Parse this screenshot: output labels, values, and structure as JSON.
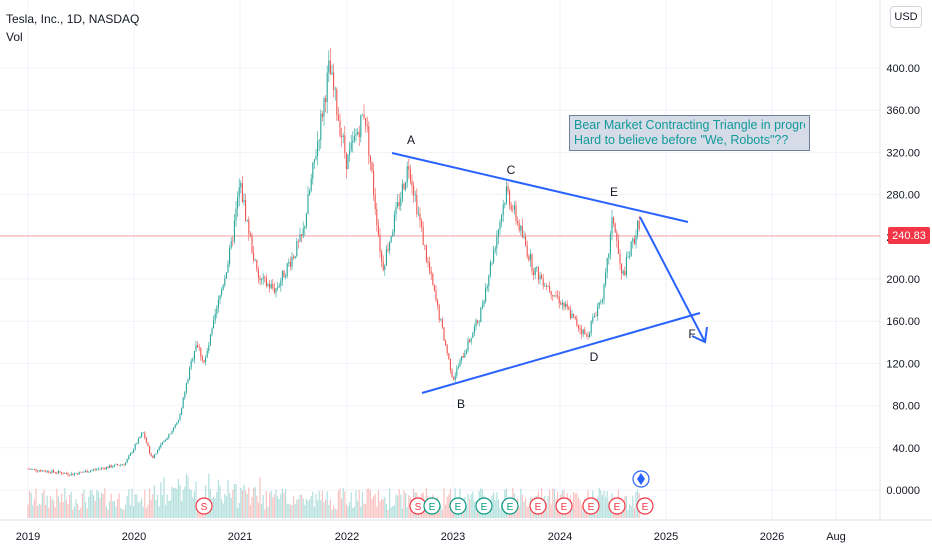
{
  "header": {
    "symbol": "Tesla, Inc., 1D, NASDAQ",
    "indicator": "Vol",
    "currency_button": "USD"
  },
  "colors": {
    "up": "#26a69a",
    "down": "#ef5350",
    "pattern_line": "#2962ff",
    "last_price_line": "#f7a5a9",
    "note_text": "#129a9a",
    "note_bg": "#d5dce8"
  },
  "icons": [
    "diamond-marker-icon",
    "earnings-badge-icon",
    "split-badge-icon"
  ],
  "chart_data": {
    "type": "candlestick",
    "x_axis": {
      "tick_labels": [
        "2019",
        "2020",
        "2021",
        "2022",
        "2023",
        "2024",
        "2025",
        "2026",
        "Aug"
      ]
    },
    "y_axis": {
      "tick_labels": [
        "400.00",
        "360.00",
        "320.00",
        "280.00",
        "240.00",
        "200.00",
        "160.00",
        "120.00",
        "80.00",
        "40.00",
        "0.0000"
      ],
      "range": [
        0,
        420
      ]
    },
    "last_price": {
      "label": "240.83",
      "value": 240.83
    },
    "price_path": [
      [
        "2019-01",
        20
      ],
      [
        "2019-06",
        15
      ],
      [
        "2019-12",
        25
      ],
      [
        "2020-02",
        55
      ],
      [
        "2020-03",
        30
      ],
      [
        "2020-06",
        65
      ],
      [
        "2020-08",
        140
      ],
      [
        "2020-09",
        120
      ],
      [
        "2020-12",
        230
      ],
      [
        "2021-01",
        290
      ],
      [
        "2021-03",
        200
      ],
      [
        "2021-05",
        190
      ],
      [
        "2021-08",
        240
      ],
      [
        "2021-11",
        400
      ],
      [
        "2022-01",
        310
      ],
      [
        "2022-03",
        360
      ],
      [
        "2022-05",
        210
      ],
      [
        "2022-08",
        310
      ],
      [
        "2022-10",
        220
      ],
      [
        "2023-01",
        105
      ],
      [
        "2023-04",
        165
      ],
      [
        "2023-07",
        285
      ],
      [
        "2023-10",
        210
      ],
      [
        "2024-01",
        180
      ],
      [
        "2024-04",
        145
      ],
      [
        "2024-06",
        190
      ],
      [
        "2024-07",
        260
      ],
      [
        "2024-08",
        200
      ],
      [
        "2024-10",
        255
      ]
    ],
    "annotations": {
      "wave_labels": [
        "A",
        "B",
        "C",
        "D",
        "E",
        "F"
      ],
      "note_lines": [
        "Bear Market Contracting Triangle in progress!!!",
        "Hard to believe before \"We, Robots\"??"
      ]
    },
    "event_badges": [
      "S",
      "S",
      "E",
      "E",
      "E",
      "E",
      "E",
      "E",
      "E",
      "E",
      "E"
    ]
  }
}
